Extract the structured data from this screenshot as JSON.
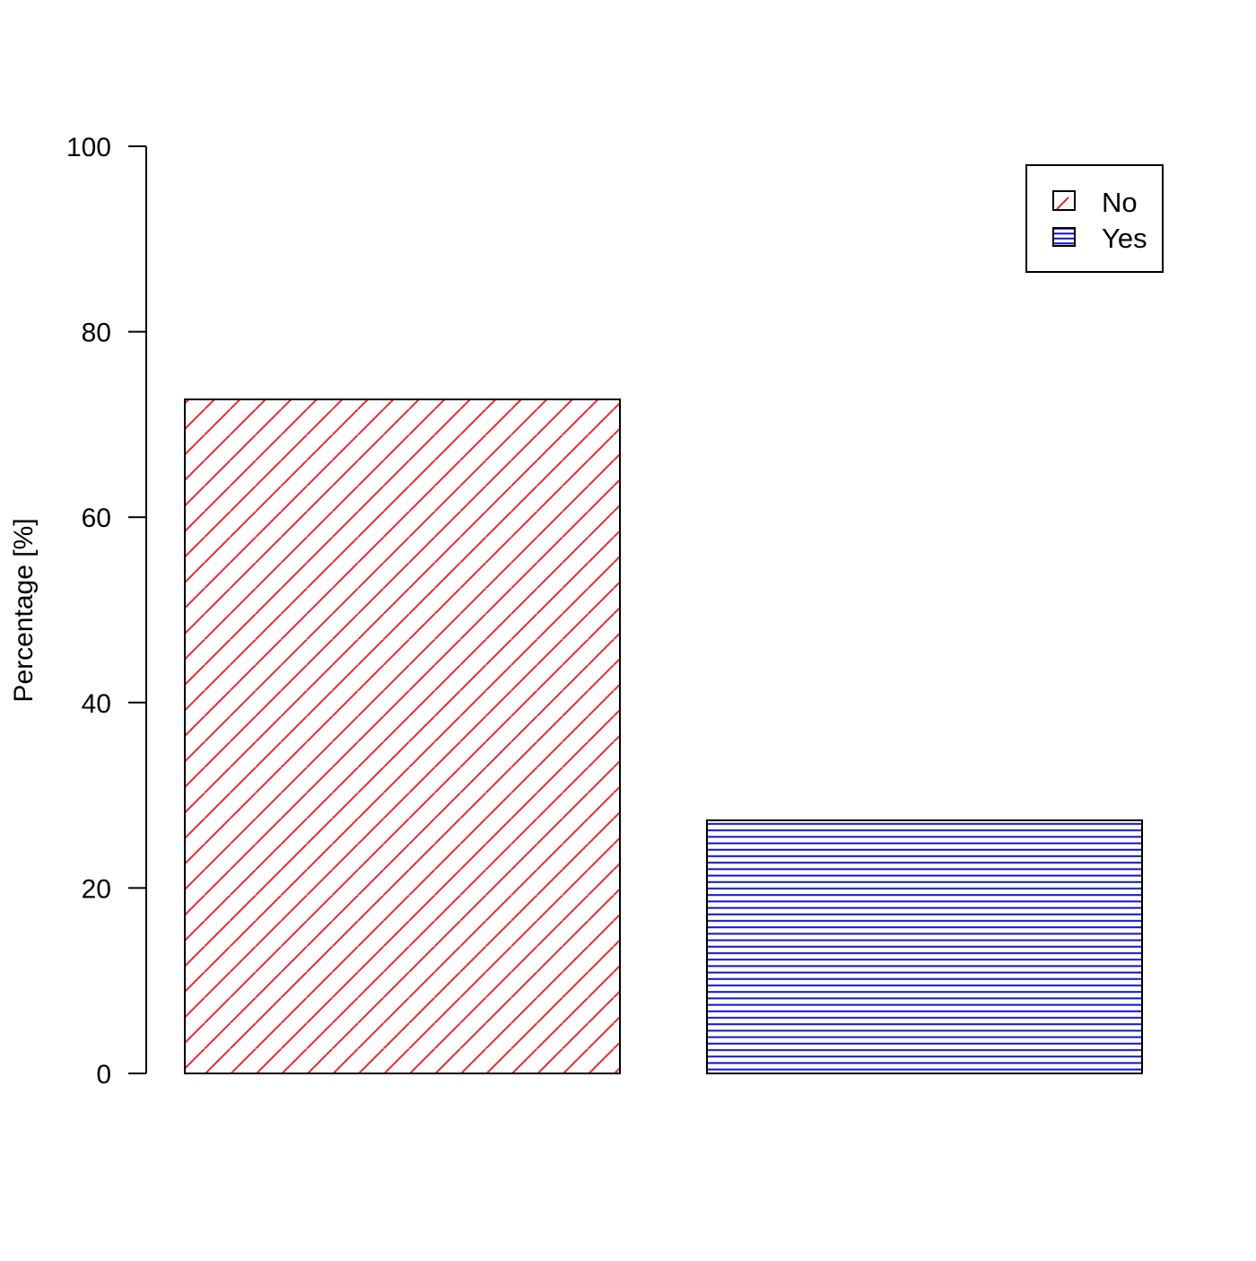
{
  "chart_data": {
    "type": "bar",
    "title": "",
    "xlabel": "",
    "ylabel": "Percentage [%]",
    "ylim": [
      0,
      100
    ],
    "yticks": [
      0,
      20,
      40,
      60,
      80,
      100
    ],
    "categories": [
      "No",
      "Yes"
    ],
    "values": [
      72.7,
      27.3
    ],
    "grid": false,
    "legend": {
      "placement": "top-right",
      "entries": [
        "No",
        "Yes"
      ]
    },
    "colors": {
      "No": "#e8282e",
      "Yes": "#1010c8"
    },
    "fill_patterns": {
      "No": "diagonal-hatch",
      "Yes": "horizontal-lines"
    }
  }
}
